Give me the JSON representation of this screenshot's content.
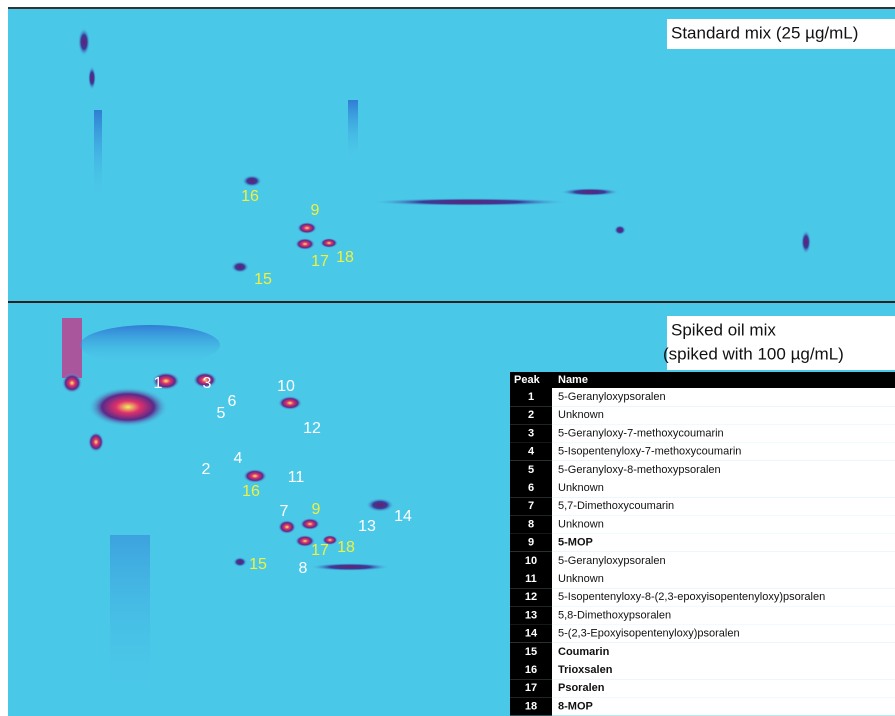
{
  "panels": [
    {
      "title_lines": [
        "Standard mix (25 µg/mL)"
      ],
      "peak_labels": [
        {
          "text": "16",
          "color": "#f0f040"
        },
        {
          "text": "9",
          "color": "#f0f040"
        },
        {
          "text": "17",
          "color": "#f0f040"
        },
        {
          "text": "18",
          "color": "#f0f040"
        },
        {
          "text": "15",
          "color": "#f0f040"
        }
      ]
    },
    {
      "title_lines": [
        "Spiked oil mix",
        "(spiked with 100 µg/mL)"
      ],
      "peak_labels": [
        {
          "text": "1",
          "color": "#ffffff"
        },
        {
          "text": "3",
          "color": "#ffffff"
        },
        {
          "text": "10",
          "color": "#ffffff"
        },
        {
          "text": "6",
          "color": "#ffffff"
        },
        {
          "text": "5",
          "color": "#ffffff"
        },
        {
          "text": "12",
          "color": "#ffffff"
        },
        {
          "text": "4",
          "color": "#ffffff"
        },
        {
          "text": "2",
          "color": "#ffffff"
        },
        {
          "text": "11",
          "color": "#ffffff"
        },
        {
          "text": "7",
          "color": "#ffffff"
        },
        {
          "text": "13",
          "color": "#ffffff"
        },
        {
          "text": "14",
          "color": "#ffffff"
        },
        {
          "text": "8",
          "color": "#ffffff"
        },
        {
          "text": "16",
          "color": "#f0f040"
        },
        {
          "text": "9",
          "color": "#f0f040"
        },
        {
          "text": "17",
          "color": "#f0f040"
        },
        {
          "text": "18",
          "color": "#f0f040"
        },
        {
          "text": "15",
          "color": "#f0f040"
        }
      ]
    }
  ],
  "table": {
    "header": [
      "Peak",
      "Name"
    ],
    "rows": [
      {
        "peak": "1",
        "name": "5-Geranyloxypsoralen",
        "bold": false
      },
      {
        "peak": "2",
        "name": "Unknown",
        "bold": false
      },
      {
        "peak": "3",
        "name": "5-Geranyloxy-7-methoxycoumarin",
        "bold": false
      },
      {
        "peak": "4",
        "name": "5-Isopentenyloxy-7-methoxycoumarin",
        "bold": false
      },
      {
        "peak": "5",
        "name": "5-Geranyloxy-8-methoxypsoralen",
        "bold": false
      },
      {
        "peak": "6",
        "name": "Unknown",
        "bold": false
      },
      {
        "peak": "7",
        "name": "5,7-Dimethoxycoumarin",
        "bold": false
      },
      {
        "peak": "8",
        "name": "Unknown",
        "bold": false
      },
      {
        "peak": "9",
        "name": "5-MOP",
        "bold": true
      },
      {
        "peak": "10",
        "name": "5-Geranyloxypsoralen",
        "bold": false
      },
      {
        "peak": "11",
        "name": "Unknown",
        "bold": false
      },
      {
        "peak": "12",
        "name": "5-Isopentenyloxy-8-(2,3-epoxyisopentenyloxy)psoralen",
        "bold": false
      },
      {
        "peak": "13",
        "name": "5,8-Dimethoxypsoralen",
        "bold": false
      },
      {
        "peak": "14",
        "name": "5-(2,3-Epoxyisopentenyloxy)psoralen",
        "bold": false
      },
      {
        "peak": "15",
        "name": "Coumarin",
        "bold": true
      },
      {
        "peak": "16",
        "name": "Trioxsalen",
        "bold": true
      },
      {
        "peak": "17",
        "name": "Psoralen",
        "bold": true
      },
      {
        "peak": "18",
        "name": "8-MOP",
        "bold": true
      }
    ]
  }
}
